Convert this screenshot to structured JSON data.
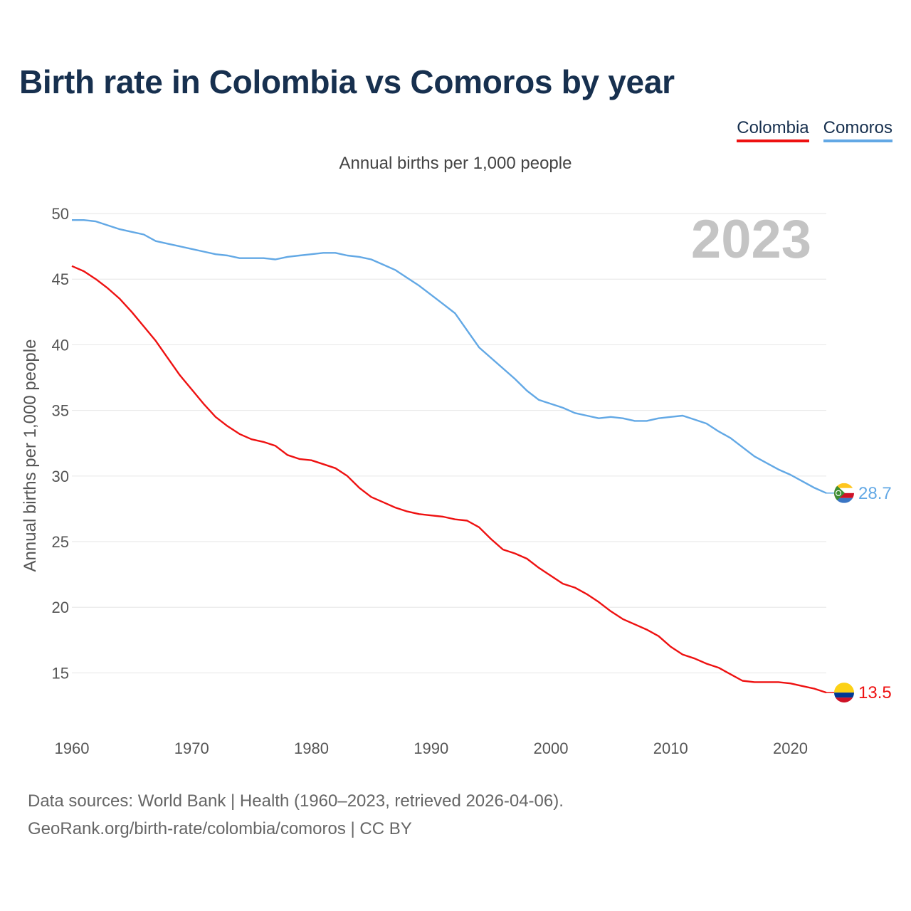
{
  "header": {
    "title": "Birth rate in Colombia vs Comoros by year",
    "subtitle": "Annual births per 1,000 people"
  },
  "legend": [
    {
      "label": "Colombia",
      "color": "#ee1111"
    },
    {
      "label": "Comoros",
      "color": "#62a8e5"
    }
  ],
  "footer": {
    "source_line1": "Data sources: World Bank | Health (1960–2023, retrieved 2026-04-06).",
    "source_line2": "GeoRank.org/birth-rate/colombia/comoros | CC BY"
  },
  "chart_data": {
    "type": "line",
    "title": "Birth rate in Colombia vs Comoros by year",
    "subtitle": "Annual births per 1,000 people",
    "xlabel": "",
    "ylabel": "Annual births per 1,000 people",
    "year_label": "2023",
    "xlim": [
      1960,
      2023
    ],
    "ylim": [
      11.5,
      50
    ],
    "x_ticks": [
      1960,
      1970,
      1980,
      1990,
      2000,
      2010,
      2020
    ],
    "y_ticks": [
      15,
      20,
      25,
      30,
      35,
      40,
      45,
      50
    ],
    "grid": true,
    "legend_position": "top-right",
    "x": [
      1960,
      1961,
      1962,
      1963,
      1964,
      1965,
      1966,
      1967,
      1968,
      1969,
      1970,
      1971,
      1972,
      1973,
      1974,
      1975,
      1976,
      1977,
      1978,
      1979,
      1980,
      1981,
      1982,
      1983,
      1984,
      1985,
      1986,
      1987,
      1988,
      1989,
      1990,
      1991,
      1992,
      1993,
      1994,
      1995,
      1996,
      1997,
      1998,
      1999,
      2000,
      2001,
      2002,
      2003,
      2004,
      2005,
      2006,
      2007,
      2008,
      2009,
      2010,
      2011,
      2012,
      2013,
      2014,
      2015,
      2016,
      2017,
      2018,
      2019,
      2020,
      2021,
      2022,
      2023
    ],
    "series": [
      {
        "name": "Colombia",
        "color": "#ee1111",
        "end_label": "13.5",
        "values": [
          46.0,
          45.6,
          45.0,
          44.3,
          43.5,
          42.5,
          41.4,
          40.3,
          39.0,
          37.7,
          36.6,
          35.5,
          34.5,
          33.8,
          33.2,
          32.8,
          32.6,
          32.3,
          31.6,
          31.3,
          31.2,
          30.9,
          30.6,
          30.0,
          29.1,
          28.4,
          28.0,
          27.6,
          27.3,
          27.1,
          27.0,
          26.9,
          26.7,
          26.6,
          26.1,
          25.2,
          24.4,
          24.1,
          23.7,
          23.0,
          22.4,
          21.8,
          21.5,
          21.0,
          20.4,
          19.7,
          19.1,
          18.7,
          18.3,
          17.8,
          17.0,
          16.4,
          16.1,
          15.7,
          15.4,
          14.9,
          14.4,
          14.3,
          14.3,
          14.3,
          14.2,
          14.0,
          13.8,
          13.5
        ]
      },
      {
        "name": "Comoros",
        "color": "#62a8e5",
        "end_label": "28.7",
        "values": [
          49.5,
          49.5,
          49.4,
          49.1,
          48.8,
          48.6,
          48.4,
          47.9,
          47.7,
          47.5,
          47.3,
          47.1,
          46.9,
          46.8,
          46.6,
          46.6,
          46.6,
          46.5,
          46.7,
          46.8,
          46.9,
          47.0,
          47.0,
          46.8,
          46.7,
          46.5,
          46.1,
          45.7,
          45.1,
          44.5,
          43.8,
          43.1,
          42.4,
          41.1,
          39.8,
          39.0,
          38.2,
          37.4,
          36.5,
          35.8,
          35.5,
          35.2,
          34.8,
          34.6,
          34.4,
          34.5,
          34.4,
          34.2,
          34.2,
          34.4,
          34.5,
          34.6,
          34.3,
          34.0,
          33.4,
          32.9,
          32.2,
          31.5,
          31.0,
          30.5,
          30.1,
          29.6,
          29.1,
          28.7
        ]
      }
    ]
  }
}
